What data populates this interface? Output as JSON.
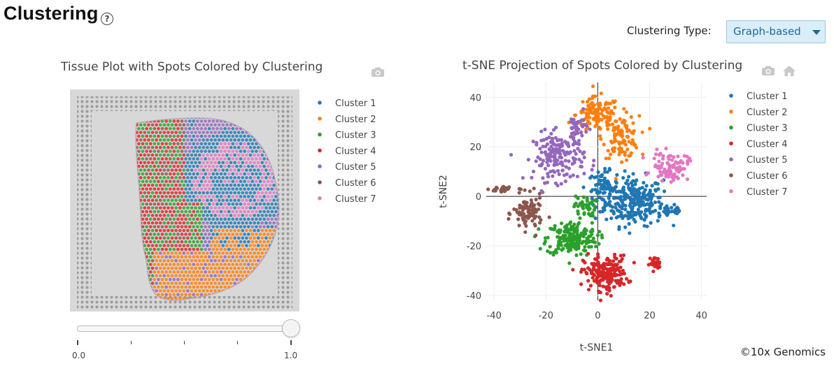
{
  "header": {
    "title": "Clustering",
    "help_icon": "?",
    "clustering_type_label": "Clustering Type:",
    "clustering_type_value": "Graph-based"
  },
  "tissue_plot": {
    "title": "Tissue Plot with Spots Colored by Clustering",
    "camera_icon": "camera-icon",
    "legend": [
      "Cluster 1",
      "Cluster 2",
      "Cluster 3",
      "Cluster 4",
      "Cluster 5",
      "Cluster 6",
      "Cluster 7"
    ],
    "slider": {
      "value": 1.0,
      "min_label": "0.0",
      "max_label": "1.0"
    }
  },
  "tsne_plot": {
    "title": "t-SNE Projection of Spots Colored by Clustering",
    "camera_icon": "camera-icon",
    "home_icon": "home-icon"
  },
  "colors": {
    "Cluster 1": "#1f77b4",
    "Cluster 2": "#ff7f0e",
    "Cluster 3": "#2ca02c",
    "Cluster 4": "#d62728",
    "Cluster 5": "#9467bd",
    "Cluster 6": "#8c564b",
    "Cluster 7": "#e377c2"
  },
  "chart_data": {
    "type": "scatter",
    "title": "t-SNE Projection of Spots Colored by Clustering",
    "xlabel": "t-SNE1",
    "ylabel": "t-SNE2",
    "xlim": [
      -43,
      42
    ],
    "ylim": [
      -42,
      46
    ],
    "xticks": [
      -40,
      -20,
      0,
      20,
      40
    ],
    "yticks": [
      40,
      20,
      0,
      -20,
      -40
    ],
    "grid": true,
    "legend_position": "right",
    "series": [
      {
        "name": "Cluster 1",
        "clusters": [
          {
            "cx": 14,
            "cy": -2,
            "sx": 8,
            "sy": 7,
            "n": 260
          },
          {
            "cx": 2,
            "cy": 3,
            "sx": 4,
            "sy": 5,
            "n": 70
          },
          {
            "cx": 28,
            "cy": -6,
            "sx": 4,
            "sy": 2,
            "n": 25
          }
        ]
      },
      {
        "name": "Cluster 2",
        "clusters": [
          {
            "cx": 0,
            "cy": 33,
            "sx": 6,
            "sy": 5,
            "n": 110
          },
          {
            "cx": 9,
            "cy": 24,
            "sx": 5,
            "sy": 6,
            "n": 110
          }
        ]
      },
      {
        "name": "Cluster 3",
        "clusters": [
          {
            "cx": -10,
            "cy": -17,
            "sx": 7,
            "sy": 5,
            "n": 200
          },
          {
            "cx": -5,
            "cy": -4,
            "sx": 3,
            "sy": 3,
            "n": 40
          }
        ]
      },
      {
        "name": "Cluster 4",
        "clusters": [
          {
            "cx": 3,
            "cy": -31,
            "sx": 6,
            "sy": 5,
            "n": 200
          },
          {
            "cx": 22,
            "cy": -27,
            "sx": 1.5,
            "sy": 1.8,
            "n": 25
          }
        ]
      },
      {
        "name": "Cluster 5",
        "clusters": [
          {
            "cx": -15,
            "cy": 16,
            "sx": 7,
            "sy": 7,
            "n": 170
          },
          {
            "cx": -8,
            "cy": 28,
            "sx": 3,
            "sy": 4,
            "n": 40
          }
        ]
      },
      {
        "name": "Cluster 6",
        "clusters": [
          {
            "cx": -27,
            "cy": -7,
            "sx": 4,
            "sy": 5,
            "n": 90
          },
          {
            "cx": -36,
            "cy": 3,
            "sx": 4,
            "sy": 1.2,
            "n": 25
          }
        ]
      },
      {
        "name": "Cluster 7",
        "clusters": [
          {
            "cx": 28,
            "cy": 12,
            "sx": 5,
            "sy": 4,
            "n": 90
          }
        ]
      }
    ]
  }
}
